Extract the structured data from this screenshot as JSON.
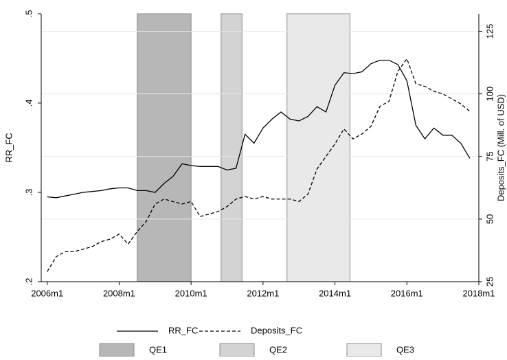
{
  "chart_data": {
    "type": "line",
    "y_label": "RR_FC",
    "y2_label": "Deposits_FC (Mill. of USD)",
    "xlim": [
      "2005m11",
      "2018m1"
    ],
    "xticks": [
      "2006m1",
      "2008m1",
      "2010m1",
      "2012m1",
      "2014m1",
      "2016m1",
      "2018m1"
    ],
    "ylim": [
      0.2,
      0.5
    ],
    "yticks": [
      {
        "value": 0.2,
        "label": ".2"
      },
      {
        "value": 0.3,
        "label": ".3"
      },
      {
        "value": 0.4,
        "label": ".4"
      },
      {
        "value": 0.5,
        "label": ".5"
      }
    ],
    "y2lim": [
      25,
      132
    ],
    "y2ticks": [
      25,
      50,
      75,
      100,
      125
    ],
    "grid": true,
    "legend": "bottom",
    "shaded_regions": [
      {
        "name": "QE1",
        "start": "2008m7",
        "end": "2010m1",
        "color": "#b7b7b7"
      },
      {
        "name": "QE2",
        "start": "2010m11",
        "end": "2011m6",
        "color": "#d3d3d3"
      },
      {
        "name": "QE3",
        "start": "2012m9",
        "end": "2014m6",
        "color": "#e9e9e9"
      }
    ],
    "x": [
      "2006m1",
      "2006m4",
      "2006m7",
      "2006m10",
      "2007m1",
      "2007m4",
      "2007m7",
      "2007m10",
      "2008m1",
      "2008m4",
      "2008m7",
      "2008m10",
      "2009m1",
      "2009m4",
      "2009m7",
      "2009m10",
      "2010m1",
      "2010m4",
      "2010m7",
      "2010m10",
      "2011m1",
      "2011m4",
      "2011m7",
      "2011m10",
      "2012m1",
      "2012m4",
      "2012m7",
      "2012m10",
      "2013m1",
      "2013m4",
      "2013m7",
      "2013m10",
      "2014m1",
      "2014m4",
      "2014m7",
      "2014m10",
      "2015m1",
      "2015m4",
      "2015m7",
      "2015m10",
      "2016m1",
      "2016m4",
      "2016m7",
      "2016m10",
      "2017m1",
      "2017m4",
      "2017m7",
      "2017m10"
    ],
    "series": [
      {
        "name": "RR_FC",
        "color": "#000000",
        "dash": "solid",
        "values": [
          0.295,
          0.294,
          0.296,
          0.298,
          0.3,
          0.301,
          0.302,
          0.304,
          0.305,
          0.305,
          0.302,
          0.302,
          0.3,
          0.31,
          0.318,
          0.332,
          0.33,
          0.329,
          0.329,
          0.329,
          0.325,
          0.327,
          0.365,
          0.355,
          0.372,
          0.382,
          0.39,
          0.382,
          0.38,
          0.385,
          0.396,
          0.39,
          0.42,
          0.434,
          0.433,
          0.435,
          0.444,
          0.448,
          0.448,
          0.443,
          0.425,
          0.375,
          0.36,
          0.372,
          0.364,
          0.364,
          0.355,
          0.338
        ]
      },
      {
        "name": "Deposits_FC",
        "color": "#000000",
        "dash": "dashed",
        "axis": "y2",
        "values": [
          29,
          35,
          37,
          37,
          38,
          39,
          41,
          42,
          44,
          40,
          45,
          49,
          56,
          58,
          57,
          56,
          57,
          51,
          52,
          53,
          55,
          58,
          59,
          58,
          59,
          58,
          58,
          58,
          57,
          60,
          70,
          75,
          80,
          86,
          82,
          84,
          87,
          95,
          97,
          109,
          114,
          104,
          103,
          101,
          100,
          98,
          96,
          93
        ]
      }
    ]
  }
}
